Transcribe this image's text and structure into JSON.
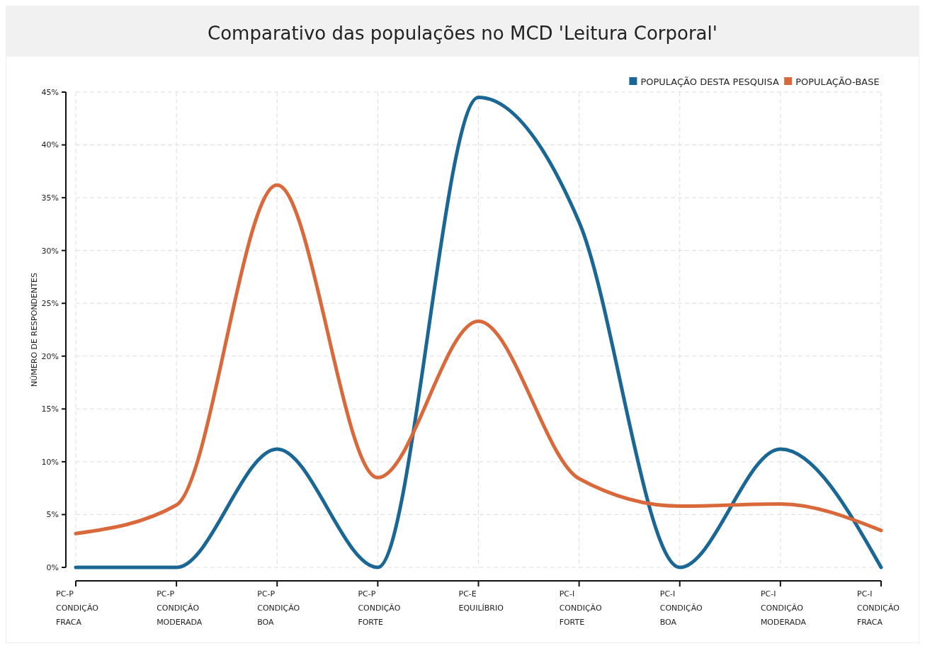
{
  "chart_data": {
    "type": "line",
    "title": "Comparativo das populações no MCD 'Leitura Corporal'",
    "ylabel": "NÚMERO DE RESPONDENTES",
    "categories": [
      "PC-P\nCONDIÇÃO\nFRACA",
      "PC-P\nCONDIÇÃO\nMODERADA",
      "PC-P\nCONDIÇÃO\nBOA",
      "PC-P\nCONDIÇÃO\nFORTE",
      "PC-E\nEQUILÍBRIO",
      "PC-I\nCONDIÇÃO\nFORTE",
      "PC-I\nCONDIÇÃO\nBOA",
      "PC-I\nCONDIÇÃO\nMODERADA",
      "PC-I\nCONDIÇÃO\nFRACA"
    ],
    "series": [
      {
        "name": "POPULAÇÃO DESTA PESQUISA",
        "color": "#1a6796",
        "values": [
          0,
          0,
          11.2,
          0,
          44.5,
          32.7,
          0,
          11.2,
          0
        ]
      },
      {
        "name": "POPULAÇÃO-BASE",
        "color": "#d9683a",
        "values": [
          3.2,
          5.9,
          36.2,
          8.5,
          23.3,
          8.4,
          5.8,
          6.0,
          3.5
        ]
      }
    ],
    "ylim": [
      0,
      45
    ],
    "yticks": [
      {
        "value": 0,
        "label": "0%"
      },
      {
        "value": 5,
        "label": "5%"
      },
      {
        "value": 10,
        "label": "10%"
      },
      {
        "value": 15,
        "label": "15%"
      },
      {
        "value": 20,
        "label": "20%"
      },
      {
        "value": 25,
        "label": "25%"
      },
      {
        "value": 30,
        "label": "30%"
      },
      {
        "value": 35,
        "label": "35%"
      },
      {
        "value": 40,
        "label": "40%"
      },
      {
        "value": 45,
        "label": "45%"
      }
    ],
    "grid": true,
    "legend": "top right",
    "marker": "none",
    "line_style": "solid"
  }
}
